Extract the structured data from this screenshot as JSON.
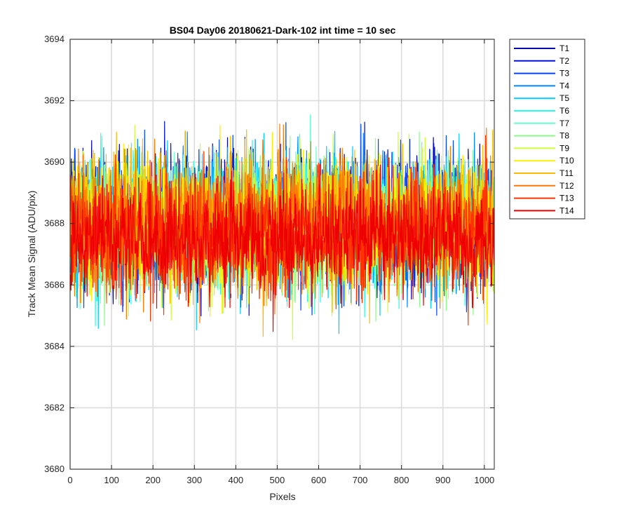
{
  "chart_data": {
    "type": "line",
    "title": "BS04 Day06 20180621-Dark-102 int time = 10 sec",
    "xlabel": "Pixels",
    "ylabel": "Track Mean Signal (ADU/pix)",
    "xlim": [
      0,
      1024
    ],
    "ylim": [
      3680,
      3694
    ],
    "xticks": [
      0,
      100,
      200,
      300,
      400,
      500,
      600,
      700,
      800,
      900,
      1000
    ],
    "yticks": [
      3680,
      3682,
      3684,
      3686,
      3688,
      3690,
      3692,
      3694
    ],
    "grid": true,
    "legend_position": "outside-top-right",
    "n_points": 1024,
    "series": [
      {
        "name": "T1",
        "color": "#0000b3",
        "mean": 3688.2,
        "amplitude": 1.2
      },
      {
        "name": "T2",
        "color": "#0010e0",
        "mean": 3688.1,
        "amplitude": 1.2
      },
      {
        "name": "T3",
        "color": "#0044ff",
        "mean": 3688.0,
        "amplitude": 1.2
      },
      {
        "name": "T4",
        "color": "#0088ff",
        "mean": 3688.0,
        "amplitude": 1.2
      },
      {
        "name": "T5",
        "color": "#00ccff",
        "mean": 3688.0,
        "amplitude": 1.2
      },
      {
        "name": "T6",
        "color": "#22ffee",
        "mean": 3688.0,
        "amplitude": 1.2
      },
      {
        "name": "T7",
        "color": "#66ffcc",
        "mean": 3688.0,
        "amplitude": 1.2
      },
      {
        "name": "T8",
        "color": "#88ff88",
        "mean": 3688.0,
        "amplitude": 1.2
      },
      {
        "name": "T9",
        "color": "#ccff33",
        "mean": 3688.0,
        "amplitude": 1.2
      },
      {
        "name": "T10",
        "color": "#ffee00",
        "mean": 3688.0,
        "amplitude": 1.2
      },
      {
        "name": "T11",
        "color": "#ffbb00",
        "mean": 3688.0,
        "amplitude": 1.2
      },
      {
        "name": "T12",
        "color": "#ff7700",
        "mean": 3687.9,
        "amplitude": 1.2
      },
      {
        "name": "T13",
        "color": "#ff3300",
        "mean": 3687.6,
        "amplitude": 1.2
      },
      {
        "name": "T14",
        "color": "#ee0000",
        "mean": 3687.5,
        "amplitude": 1.0
      }
    ]
  }
}
